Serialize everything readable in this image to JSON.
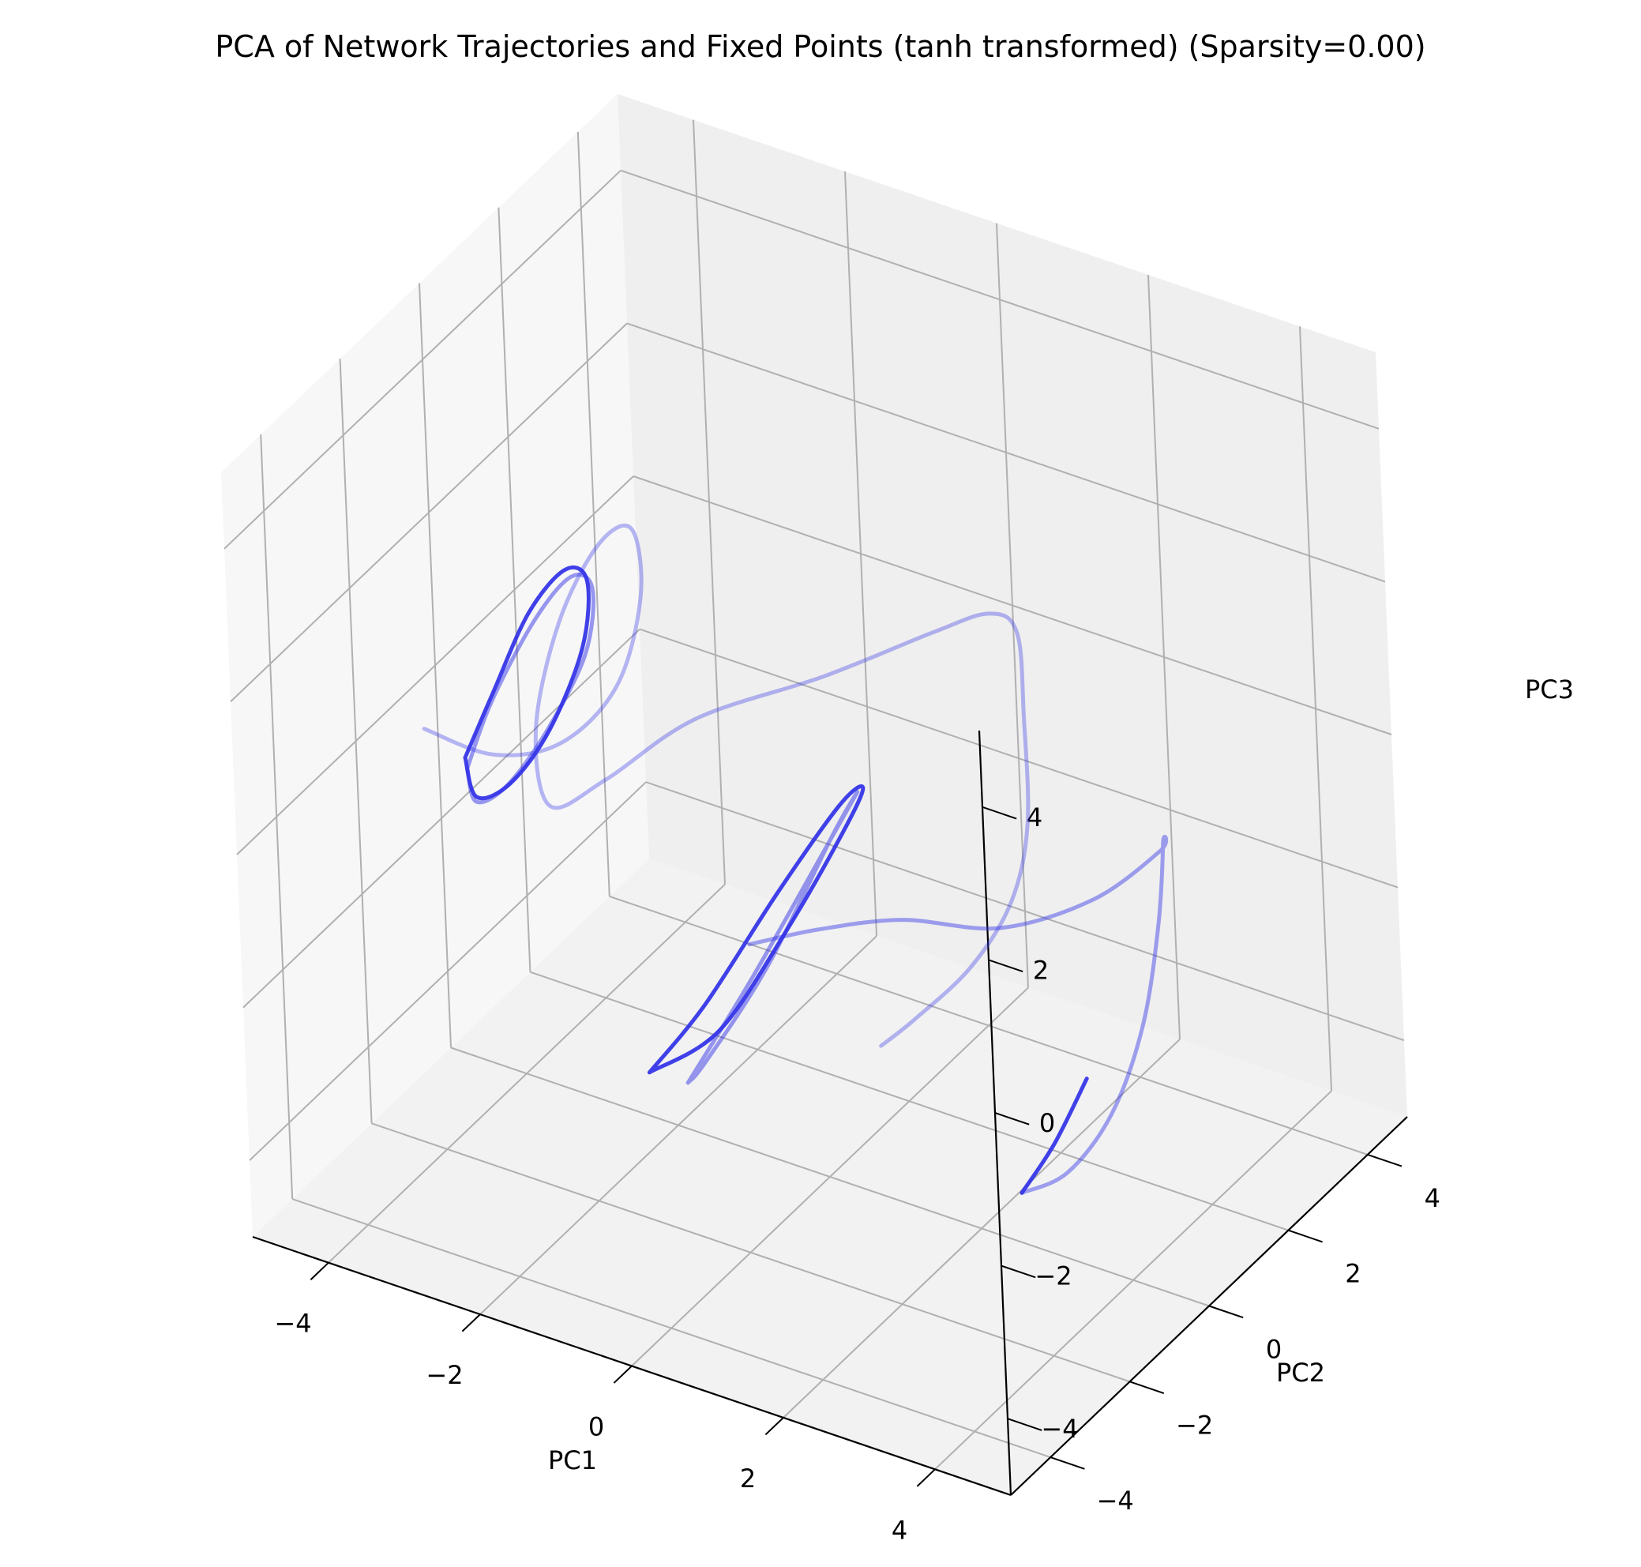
{
  "chart_data": {
    "type": "line3d",
    "title": "PCA of Network Trajectories and Fixed Points (tanh transformed) (Sparsity=0.00)",
    "xlabel": "PC1",
    "ylabel": "PC2",
    "zlabel": "PC3",
    "xlim": [
      -5,
      5
    ],
    "ylim": [
      -5,
      5
    ],
    "zlim": [
      -5,
      5
    ],
    "xticks": [
      "−4",
      "−2",
      "0",
      "2",
      "4"
    ],
    "yticks": [
      "−4",
      "−2",
      "0",
      "2",
      "4"
    ],
    "zticks": [
      "−4",
      "−2",
      "0",
      "2",
      "4"
    ],
    "grid": true,
    "colors": {
      "trajectory": "#3636e8",
      "grid": "#b0b0b0",
      "pane": "#f2f2f2"
    },
    "series": [
      {
        "opacity": 0.35,
        "points": [
          [
            -4.3,
            -1.6,
            0.2
          ],
          [
            -3.6,
            -1.2,
            -0.1
          ],
          [
            -2.9,
            -0.8,
            0.1
          ],
          [
            -2.3,
            -0.5,
            0.9
          ],
          [
            -2.1,
            -0.2,
            2.0
          ],
          [
            -2.3,
            0.0,
            2.7
          ],
          [
            -2.7,
            -0.1,
            2.4
          ],
          [
            -3.1,
            -0.4,
            1.4
          ],
          [
            -3.3,
            -0.7,
            0.1
          ],
          [
            -3.1,
            -0.8,
            -0.8
          ],
          [
            -2.5,
            -0.5,
            -0.4
          ],
          [
            -1.6,
            0.1,
            0.4
          ],
          [
            -0.3,
            0.9,
            1.0
          ],
          [
            0.8,
            1.6,
            1.6
          ],
          [
            1.4,
            1.9,
            1.9
          ],
          [
            1.7,
            2.0,
            1.7
          ],
          [
            1.8,
            1.9,
            0.7
          ],
          [
            1.9,
            1.7,
            -0.6
          ],
          [
            1.8,
            1.4,
            -1.5
          ],
          [
            1.5,
            0.9,
            -2.2
          ],
          [
            1.0,
            0.4,
            -2.8
          ],
          [
            0.7,
            0.1,
            -3.1
          ]
        ]
      },
      {
        "opacity": 0.5,
        "points": [
          [
            -3.8,
            -1.5,
            -0.2
          ],
          [
            -3.6,
            -1.2,
            0.6
          ],
          [
            -3.2,
            -0.8,
            1.6
          ],
          [
            -2.8,
            -0.6,
            2.2
          ],
          [
            -2.55,
            -0.55,
            2.1
          ],
          [
            -2.6,
            -0.7,
            1.3
          ],
          [
            -3.0,
            -1.0,
            0.3
          ],
          [
            -3.4,
            -1.3,
            -0.4
          ],
          [
            -3.7,
            -1.5,
            -0.6
          ],
          [
            -3.8,
            -1.5,
            -0.2
          ]
        ]
      },
      {
        "opacity": 0.95,
        "points": [
          [
            -3.85,
            -1.45,
            -0.1
          ],
          [
            -3.6,
            -1.15,
            0.7
          ],
          [
            -3.25,
            -0.85,
            1.7
          ],
          [
            -2.85,
            -0.65,
            2.3
          ],
          [
            -2.6,
            -0.58,
            2.2
          ],
          [
            -2.62,
            -0.72,
            1.4
          ],
          [
            -2.95,
            -1.0,
            0.35
          ],
          [
            -3.35,
            -1.28,
            -0.35
          ],
          [
            -3.7,
            -1.48,
            -0.55
          ],
          [
            -3.85,
            -1.45,
            -0.1
          ]
        ]
      },
      {
        "opacity": 0.45,
        "points": [
          [
            -0.4,
            -1.0,
            -1.6
          ],
          [
            0.2,
            -0.4,
            -1.5
          ],
          [
            1.0,
            0.2,
            -1.4
          ],
          [
            2.2,
            0.4,
            -1.2
          ],
          [
            3.3,
            0.7,
            -0.6
          ],
          [
            4.1,
            0.9,
            0.2
          ],
          [
            4.2,
            0.8,
            0.4
          ],
          [
            4.2,
            0.6,
            -0.6
          ],
          [
            4.1,
            0.3,
            -1.8
          ],
          [
            3.8,
            0.0,
            -2.9
          ],
          [
            3.4,
            -0.4,
            -3.6
          ],
          [
            3.0,
            -0.8,
            -3.8
          ]
        ]
      },
      {
        "opacity": 0.95,
        "points": [
          [
            3.0,
            -0.8,
            -3.8
          ],
          [
            3.3,
            -0.5,
            -3.2
          ],
          [
            3.6,
            -0.2,
            -2.4
          ]
        ]
      },
      {
        "opacity": 0.5,
        "points": [
          [
            -0.8,
            -1.9,
            -3.1
          ],
          [
            -0.2,
            -1.3,
            -1.8
          ],
          [
            0.5,
            -0.7,
            -0.2
          ],
          [
            0.8,
            -0.4,
            0.5
          ],
          [
            0.6,
            -0.7,
            0.0
          ],
          [
            0.0,
            -1.3,
            -1.6
          ],
          [
            -0.6,
            -1.8,
            -2.8
          ],
          [
            -0.8,
            -1.9,
            -3.1
          ]
        ]
      },
      {
        "opacity": 0.95,
        "points": [
          [
            -1.2,
            -2.1,
            -3.0
          ],
          [
            -0.7,
            -1.6,
            -2.2
          ],
          [
            0.0,
            -1.0,
            -0.8
          ],
          [
            0.6,
            -0.5,
            0.3
          ],
          [
            0.85,
            -0.35,
            0.55
          ],
          [
            0.7,
            -0.6,
            0.05
          ],
          [
            0.15,
            -1.1,
            -1.2
          ],
          [
            -0.5,
            -1.65,
            -2.45
          ],
          [
            -1.2,
            -2.1,
            -3.0
          ]
        ]
      }
    ]
  }
}
